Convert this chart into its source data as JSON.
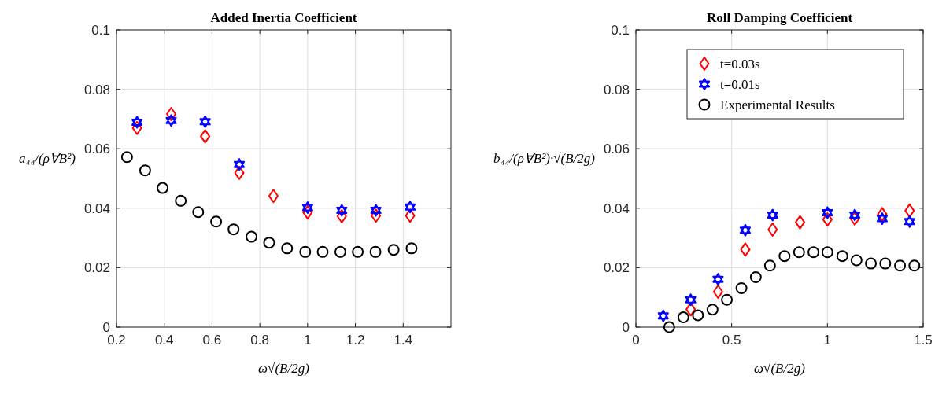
{
  "chart_data": [
    {
      "type": "scatter",
      "title": "Added Inertia Coefficient",
      "xlabel": "ω√(B/2g)",
      "ylabel": "a₄₄/(ρ∀B²)",
      "xlim": [
        0.2,
        1.6
      ],
      "xticks": [
        0.2,
        0.4,
        0.6,
        0.8,
        1,
        1.2,
        1.4
      ],
      "ylim": [
        0,
        0.1
      ],
      "yticks": [
        0,
        0.02,
        0.04,
        0.06,
        0.08,
        0.1
      ],
      "grid": true,
      "legend": false,
      "series": [
        {
          "color": "#ff0000",
          "marker": "diamond",
          "x": [
            0.286,
            0.429,
            0.571,
            0.714,
            0.857,
            1.0,
            1.143,
            1.286,
            1.429
          ],
          "values": [
            0.067,
            0.0717,
            0.0642,
            0.0519,
            0.0441,
            0.0386,
            0.0373,
            0.0375,
            0.0375
          ]
        },
        {
          "color": "#0000ff",
          "marker": "star",
          "x": [
            0.286,
            0.429,
            0.571,
            0.714,
            1.0,
            1.143,
            1.286,
            1.429
          ],
          "values": [
            0.0689,
            0.0695,
            0.0691,
            0.0547,
            0.0402,
            0.0393,
            0.0393,
            0.0404
          ]
        },
        {
          "color": "#000000",
          "marker": "circle",
          "x": [
            0.244,
            0.32,
            0.393,
            0.469,
            0.542,
            0.617,
            0.69,
            0.765,
            0.839,
            0.914,
            0.99,
            1.063,
            1.137,
            1.21,
            1.284,
            1.36,
            1.435
          ],
          "values": [
            0.0572,
            0.0527,
            0.0468,
            0.0425,
            0.0387,
            0.0355,
            0.0329,
            0.0304,
            0.0284,
            0.0265,
            0.0253,
            0.0253,
            0.0253,
            0.0253,
            0.0253,
            0.026,
            0.0265
          ]
        }
      ]
    },
    {
      "type": "scatter",
      "title": "Roll Damping Coefficient",
      "xlabel": "ω√(B/2g)",
      "ylabel": "b₄₄/(ρ∀B²)·√(B/2g)",
      "xlim": [
        0,
        1.5
      ],
      "xticks": [
        0,
        0.5,
        1,
        1.5
      ],
      "ylim": [
        0,
        0.1
      ],
      "yticks": [
        0,
        0.02,
        0.04,
        0.06,
        0.08,
        0.1
      ],
      "grid": true,
      "legend": "top right",
      "series": [
        {
          "name": "t=0.03s",
          "color": "#ff0000",
          "marker": "diamond",
          "x": [
            0.286,
            0.429,
            0.571,
            0.714,
            0.857,
            1.0,
            1.143,
            1.286,
            1.429
          ],
          "values": [
            0.006,
            0.0119,
            0.0261,
            0.0328,
            0.0353,
            0.0362,
            0.0365,
            0.038,
            0.0392
          ]
        },
        {
          "name": "t=0.01s",
          "color": "#0000ff",
          "marker": "star",
          "x": [
            0.143,
            0.286,
            0.429,
            0.571,
            0.714,
            1.0,
            1.143,
            1.286,
            1.429
          ],
          "values": [
            0.0038,
            0.0092,
            0.0161,
            0.0326,
            0.0377,
            0.0385,
            0.0377,
            0.0365,
            0.0355
          ]
        },
        {
          "name": "Experimental Results",
          "color": "#000000",
          "marker": "circle",
          "x": [
            0.174,
            0.248,
            0.324,
            0.4,
            0.475,
            0.551,
            0.626,
            0.7,
            0.776,
            0.852,
            0.927,
            1.0,
            1.078,
            1.152,
            1.227,
            1.302,
            1.379,
            1.454
          ],
          "values": [
            0,
            0.0033,
            0.004,
            0.0059,
            0.0092,
            0.0131,
            0.0168,
            0.0207,
            0.0239,
            0.0252,
            0.0252,
            0.0252,
            0.0239,
            0.0225,
            0.0214,
            0.0214,
            0.0207,
            0.0207
          ]
        }
      ]
    }
  ]
}
